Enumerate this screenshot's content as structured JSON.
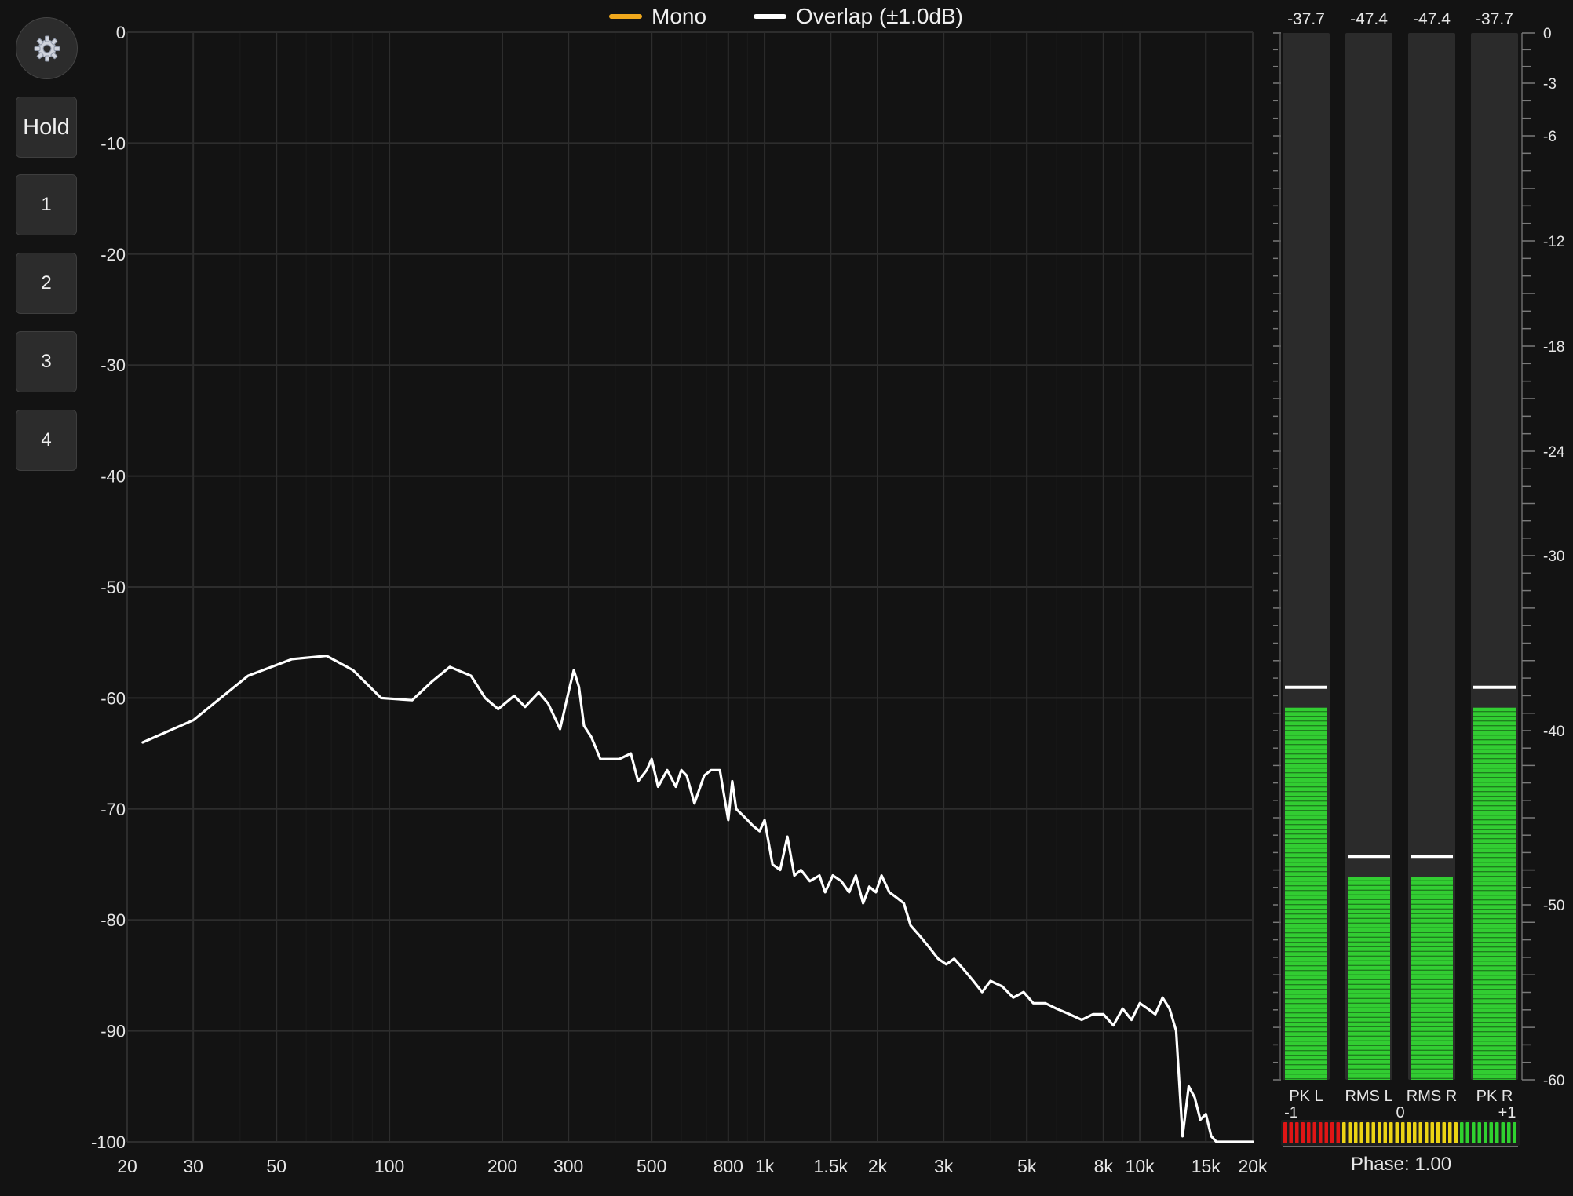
{
  "sidebar": {
    "settings": {
      "icon": "gear-icon"
    },
    "hold_label": "Hold",
    "slots": [
      "1",
      "2",
      "3",
      "4"
    ]
  },
  "legend": [
    {
      "label": "Mono",
      "color": "#f0a81c"
    },
    {
      "label": "Overlap (±1.0dB)",
      "color": "#ffffff"
    }
  ],
  "chart_data": {
    "type": "line",
    "xscale": "log",
    "xlim": [
      20,
      20000
    ],
    "ylim": [
      -100,
      0
    ],
    "yticks": [
      0,
      -10,
      -20,
      -30,
      -40,
      -50,
      -60,
      -70,
      -80,
      -90,
      -100
    ],
    "ytick_labels": [
      "0",
      "-10",
      "-20",
      "-30",
      "-40",
      "-50",
      "-60",
      "-70",
      "-80",
      "-90",
      "-100"
    ],
    "xticks": [
      20,
      30,
      50,
      100,
      200,
      300,
      500,
      800,
      1000,
      1500,
      2000,
      3000,
      5000,
      8000,
      10000,
      15000,
      20000
    ],
    "xtick_labels": [
      "20",
      "30",
      "50",
      "100",
      "200",
      "300",
      "500",
      "800",
      "1k",
      "1.5k",
      "2k",
      "3k",
      "5k",
      "8k",
      "10k",
      "15k",
      "20k"
    ],
    "grid": true,
    "series": [
      {
        "name": "Overlap (±1.0dB)",
        "color": "#ffffff",
        "x": [
          22,
          30,
          42,
          55,
          68,
          80,
          95,
          115,
          130,
          145,
          165,
          180,
          195,
          215,
          230,
          250,
          265,
          285,
          300,
          310,
          320,
          330,
          345,
          365,
          385,
          410,
          440,
          460,
          485,
          500,
          520,
          550,
          580,
          600,
          620,
          650,
          690,
          720,
          760,
          800,
          820,
          840,
          870,
          900,
          930,
          970,
          1000,
          1050,
          1100,
          1150,
          1200,
          1250,
          1320,
          1400,
          1450,
          1520,
          1600,
          1680,
          1750,
          1830,
          1900,
          1980,
          2050,
          2150,
          2250,
          2350,
          2450,
          2600,
          2750,
          2900,
          3050,
          3200,
          3400,
          3600,
          3800,
          4000,
          4300,
          4600,
          4900,
          5200,
          5600,
          6000,
          6500,
          7000,
          7500,
          8000,
          8500,
          9000,
          9500,
          10000,
          10500,
          11000,
          11500,
          12000,
          12500,
          13000,
          13500,
          14000,
          14500,
          15000,
          15500,
          16000,
          17000,
          18000,
          19000,
          20000
        ],
        "y": [
          -64,
          -62,
          -58,
          -56.5,
          -56.2,
          -57.5,
          -60,
          -60.2,
          -58.5,
          -57.2,
          -58,
          -60,
          -61,
          -59.8,
          -60.8,
          -59.5,
          -60.5,
          -62.8,
          -59.5,
          -57.5,
          -59,
          -62.5,
          -63.5,
          -65.5,
          -65.5,
          -65.5,
          -65,
          -67.5,
          -66.5,
          -65.5,
          -68,
          -66.5,
          -68,
          -66.5,
          -67,
          -69.5,
          -67,
          -66.5,
          -66.5,
          -71,
          -67.5,
          -70,
          -70.5,
          -71,
          -71.5,
          -72,
          -71,
          -75,
          -75.5,
          -72.5,
          -76,
          -75.5,
          -76.5,
          -76,
          -77.5,
          -76,
          -76.5,
          -77.5,
          -76,
          -78.5,
          -77,
          -77.5,
          -76,
          -77.5,
          -78,
          -78.5,
          -80.5,
          -81.5,
          -82.5,
          -83.5,
          -84,
          -83.5,
          -84.5,
          -85.5,
          -86.5,
          -85.5,
          -86,
          -87,
          -86.5,
          -87.5,
          -87.5,
          -88,
          -88.5,
          -89,
          -88.5,
          -88.5,
          -89.5,
          -88,
          -89,
          -87.5,
          -88,
          -88.5,
          -87,
          -88,
          -90,
          -99.5,
          -95,
          -96,
          -98,
          -97.5,
          -99.5,
          -100,
          -100,
          -100,
          -100,
          -100
        ]
      },
      {
        "name": "Mono",
        "color": "#f0a81c",
        "x": [],
        "y": []
      }
    ]
  },
  "meters": {
    "scale": [
      0,
      -3,
      -6,
      -12,
      -18,
      -24,
      -30,
      -40,
      -50,
      -60
    ],
    "scale_labels": [
      "0",
      "-3",
      "-6",
      "-12",
      "-18",
      "-24",
      "-30",
      "-40",
      "-50",
      "-60"
    ],
    "channels": [
      {
        "label": "PK L",
        "readout": "-37.7",
        "level": -37.7,
        "hold": -36.5
      },
      {
        "label": "RMS L",
        "readout": "-47.4",
        "level": -47.4,
        "hold": -46.9
      },
      {
        "label": "RMS R",
        "readout": "-47.4",
        "level": -47.4,
        "hold": -46.9
      },
      {
        "label": "PK R",
        "readout": "-37.7",
        "level": -37.7,
        "hold": -36.5
      }
    ]
  },
  "phase": {
    "min_label": "-1",
    "mid_label": "0",
    "max_label": "+1",
    "readout": "Phase: 1.00",
    "value": 1.0
  }
}
